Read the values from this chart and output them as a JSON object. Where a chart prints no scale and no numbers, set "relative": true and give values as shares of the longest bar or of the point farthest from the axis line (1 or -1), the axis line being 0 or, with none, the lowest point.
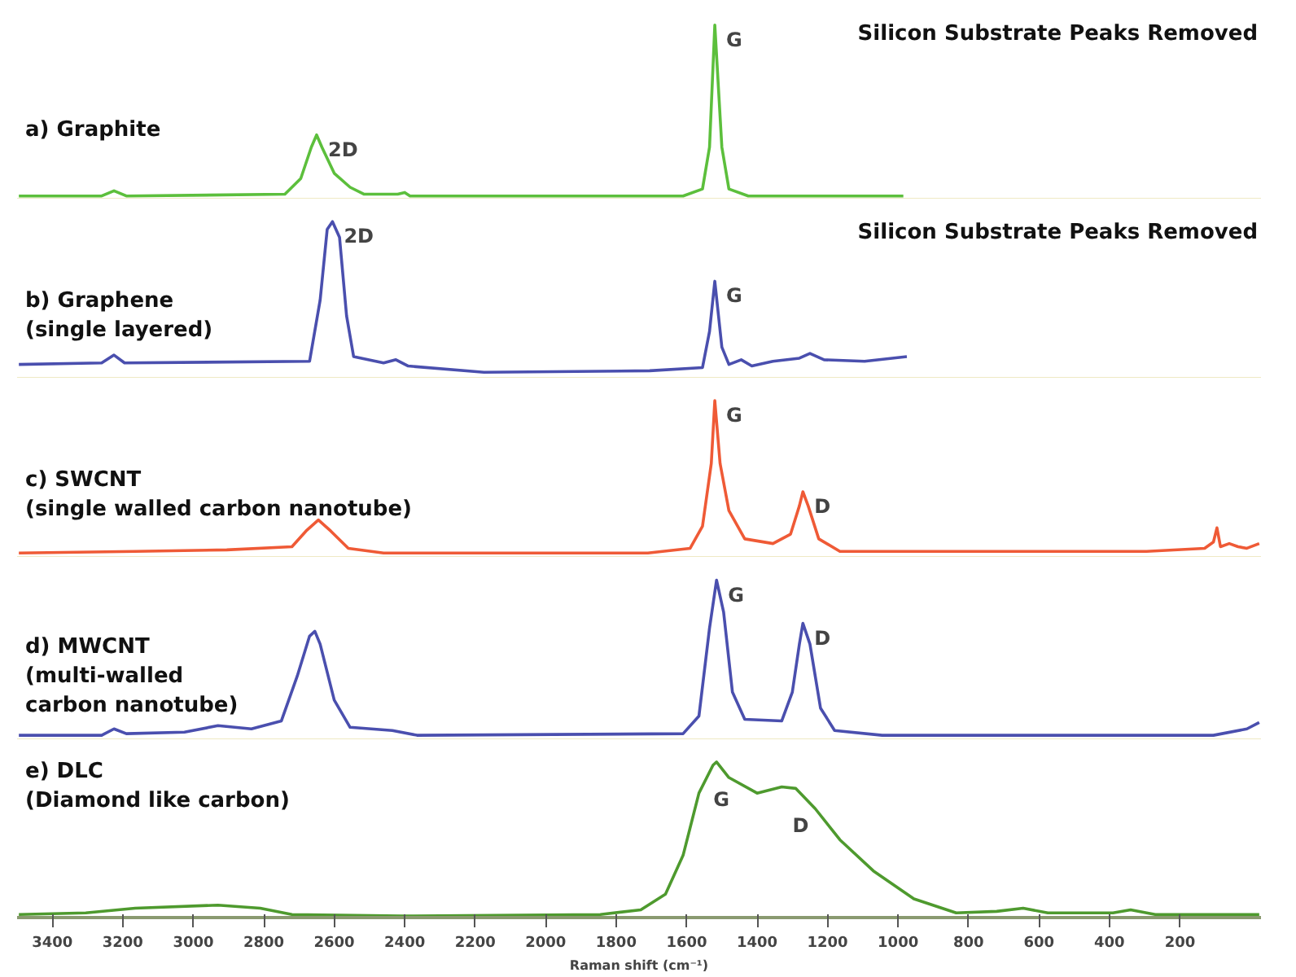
{
  "chart_data": [
    {
      "type": "line",
      "relative": true,
      "xlim": [
        3500,
        -30
      ],
      "tick_labels": false,
      "series": [
        {
          "name": "a) Graphite",
          "color": "#5cbf3c",
          "x": [
            3495,
            3260,
            3225,
            3190,
            2740,
            2695,
            2665,
            2650,
            2635,
            2600,
            2555,
            2515,
            2420,
            2400,
            2385,
            1610,
            1555,
            1535,
            1520,
            1500,
            1480,
            1425,
            985
          ],
          "values": [
            0.02,
            0.02,
            0.05,
            0.02,
            0.03,
            0.12,
            0.3,
            0.37,
            0.3,
            0.15,
            0.07,
            0.03,
            0.03,
            0.04,
            0.02,
            0.02,
            0.06,
            0.3,
            1.0,
            0.3,
            0.06,
            0.02,
            0.02
          ]
        }
      ],
      "annotations": [
        {
          "text": "2D",
          "x": 2650,
          "y": 0.37
        },
        {
          "text": "G",
          "x": 1520,
          "y": 1.0
        },
        "Silicon Substrate Peaks Removed"
      ]
    },
    {
      "type": "line",
      "relative": true,
      "xlim": [
        3500,
        -30
      ],
      "tick_labels": false,
      "series": [
        {
          "name": "b) Graphene\n(single layered)",
          "color": "#4a4fae",
          "x": [
            3495,
            3260,
            3225,
            3195,
            2670,
            2640,
            2620,
            2605,
            2585,
            2565,
            2545,
            2460,
            2425,
            2390,
            2175,
            1705,
            1555,
            1535,
            1520,
            1500,
            1480,
            1445,
            1415,
            1355,
            1280,
            1250,
            1210,
            1095,
            975
          ],
          "values": [
            0.09,
            0.1,
            0.15,
            0.1,
            0.11,
            0.5,
            0.95,
            1.0,
            0.9,
            0.4,
            0.14,
            0.1,
            0.12,
            0.08,
            0.04,
            0.05,
            0.07,
            0.3,
            0.62,
            0.2,
            0.09,
            0.12,
            0.08,
            0.11,
            0.13,
            0.16,
            0.12,
            0.11,
            0.14
          ]
        }
      ],
      "annotations": [
        {
          "text": "2D",
          "x": 2605,
          "y": 1.0
        },
        {
          "text": "G",
          "x": 1520,
          "y": 0.62
        },
        "Silicon Substrate Peaks Removed"
      ]
    },
    {
      "type": "line",
      "relative": true,
      "xlim": [
        3500,
        -30
      ],
      "tick_labels": false,
      "series": [
        {
          "name": "c) SWCNT\n(single walled carbon nanotube)",
          "color": "#ef5a36",
          "x": [
            3495,
            3165,
            2905,
            2720,
            2680,
            2645,
            2610,
            2560,
            2460,
            1710,
            1590,
            1555,
            1530,
            1520,
            1505,
            1480,
            1435,
            1355,
            1305,
            1280,
            1270,
            1255,
            1225,
            1165,
            295,
            130,
            105,
            95,
            85,
            60,
            35,
            10,
            -25
          ],
          "values": [
            0.03,
            0.04,
            0.05,
            0.07,
            0.17,
            0.24,
            0.17,
            0.06,
            0.03,
            0.03,
            0.06,
            0.2,
            0.6,
            1.0,
            0.6,
            0.3,
            0.12,
            0.09,
            0.15,
            0.33,
            0.42,
            0.33,
            0.12,
            0.04,
            0.04,
            0.06,
            0.1,
            0.19,
            0.07,
            0.09,
            0.07,
            0.06,
            0.09
          ]
        }
      ],
      "annotations": [
        {
          "text": "G",
          "x": 1520,
          "y": 1.0
        },
        {
          "text": "D",
          "x": 1270,
          "y": 0.42
        }
      ]
    },
    {
      "type": "line",
      "relative": true,
      "xlim": [
        3500,
        -30
      ],
      "tick_labels": false,
      "series": [
        {
          "name": "d) MWCNT\n(multi-walled\ncarbon nanotube)",
          "color": "#4a4fae",
          "x": [
            3495,
            3260,
            3225,
            3190,
            3025,
            2930,
            2835,
            2750,
            2705,
            2670,
            2655,
            2640,
            2600,
            2555,
            2435,
            2365,
            1610,
            1565,
            1535,
            1515,
            1495,
            1470,
            1435,
            1330,
            1300,
            1280,
            1270,
            1250,
            1220,
            1180,
            1045,
            105,
            10,
            -25
          ],
          "values": [
            0.03,
            0.03,
            0.07,
            0.04,
            0.05,
            0.09,
            0.07,
            0.12,
            0.4,
            0.65,
            0.68,
            0.6,
            0.25,
            0.08,
            0.06,
            0.03,
            0.04,
            0.15,
            0.7,
            1.0,
            0.8,
            0.3,
            0.13,
            0.12,
            0.3,
            0.6,
            0.73,
            0.6,
            0.2,
            0.06,
            0.03,
            0.03,
            0.07,
            0.11
          ]
        }
      ],
      "annotations": [
        {
          "text": "G",
          "x": 1515,
          "y": 1.0
        },
        {
          "text": "D",
          "x": 1270,
          "y": 0.73
        }
      ]
    },
    {
      "type": "line",
      "relative": true,
      "xlim": [
        3500,
        -30
      ],
      "xticks": [
        3400,
        3200,
        3000,
        2800,
        2600,
        2400,
        2200,
        2000,
        1800,
        1600,
        1400,
        1200,
        1000,
        800,
        600,
        400,
        200
      ],
      "tick_labels": "x",
      "xlabel": "Raman shift (cm⁻¹)",
      "series": [
        {
          "name": "e) DLC\n(Diamond like carbon)",
          "color": "#4e9a2e",
          "x": [
            3495,
            3305,
            3165,
            2930,
            2810,
            2720,
            2410,
            1845,
            1730,
            1660,
            1610,
            1565,
            1525,
            1515,
            1480,
            1400,
            1330,
            1290,
            1235,
            1165,
            1070,
            955,
            835,
            720,
            645,
            575,
            390,
            340,
            270,
            -25
          ],
          "values": [
            0.02,
            0.03,
            0.06,
            0.08,
            0.06,
            0.02,
            0.01,
            0.02,
            0.05,
            0.15,
            0.4,
            0.8,
            0.98,
            1.0,
            0.9,
            0.8,
            0.84,
            0.83,
            0.7,
            0.5,
            0.3,
            0.12,
            0.03,
            0.04,
            0.06,
            0.03,
            0.03,
            0.05,
            0.02,
            0.02
          ]
        }
      ],
      "annotations": [
        {
          "text": "G",
          "x": 1515,
          "y": 1.0
        },
        {
          "text": "D",
          "x": 1290,
          "y": 0.83
        }
      ]
    }
  ]
}
